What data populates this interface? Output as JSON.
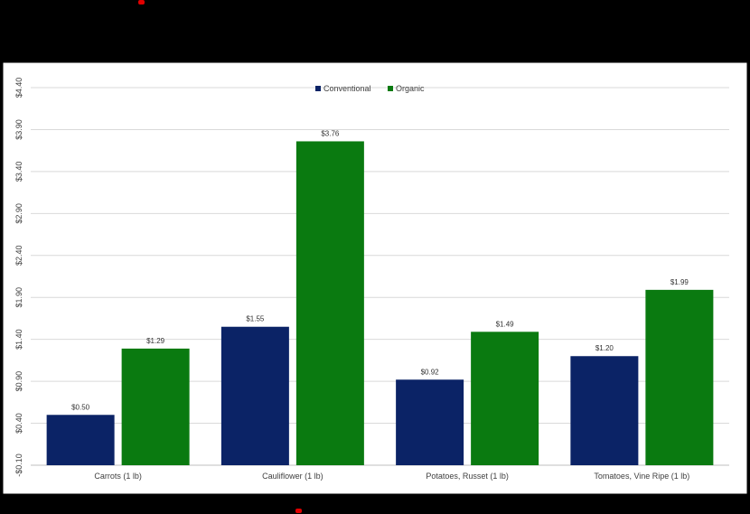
{
  "colors": {
    "background": "#000000",
    "plot_bg": "#ffffff",
    "conventional": "#0b2366",
    "organic": "#0a7a10",
    "grid": "#d9d9d9",
    "text": "#404040",
    "accent_dot": "#e00000"
  },
  "chart_data": {
    "type": "bar",
    "categories": [
      "Carrots (1 lb)",
      "Cauliflower (1 lb)",
      "Potatoes, Russet (1 lb)",
      "Tomatoes, Vine Ripe (1 lb)"
    ],
    "series": [
      {
        "name": "Conventional",
        "values": [
          0.5,
          1.55,
          0.92,
          1.2
        ],
        "labels": [
          "$0.50",
          "$1.55",
          "$0.92",
          "$1.20"
        ],
        "color": "#0b2366"
      },
      {
        "name": "Organic",
        "values": [
          1.29,
          3.76,
          1.49,
          1.99
        ],
        "labels": [
          "$1.29",
          "$3.76",
          "$1.49",
          "$1.99"
        ],
        "color": "#0a7a10"
      }
    ],
    "yticks": [
      -0.1,
      0.4,
      0.9,
      1.4,
      1.9,
      2.4,
      2.9,
      3.4,
      3.9,
      4.4
    ],
    "ytick_labels": [
      "-$0.10",
      "$0.40",
      "$0.90",
      "$1.40",
      "$1.90",
      "$2.40",
      "$2.90",
      "$3.40",
      "$3.90",
      "$4.40"
    ],
    "ylim": [
      -0.1,
      4.4
    ],
    "grid": true,
    "legend": "top-center",
    "title": "",
    "xlabel": "",
    "ylabel": ""
  }
}
